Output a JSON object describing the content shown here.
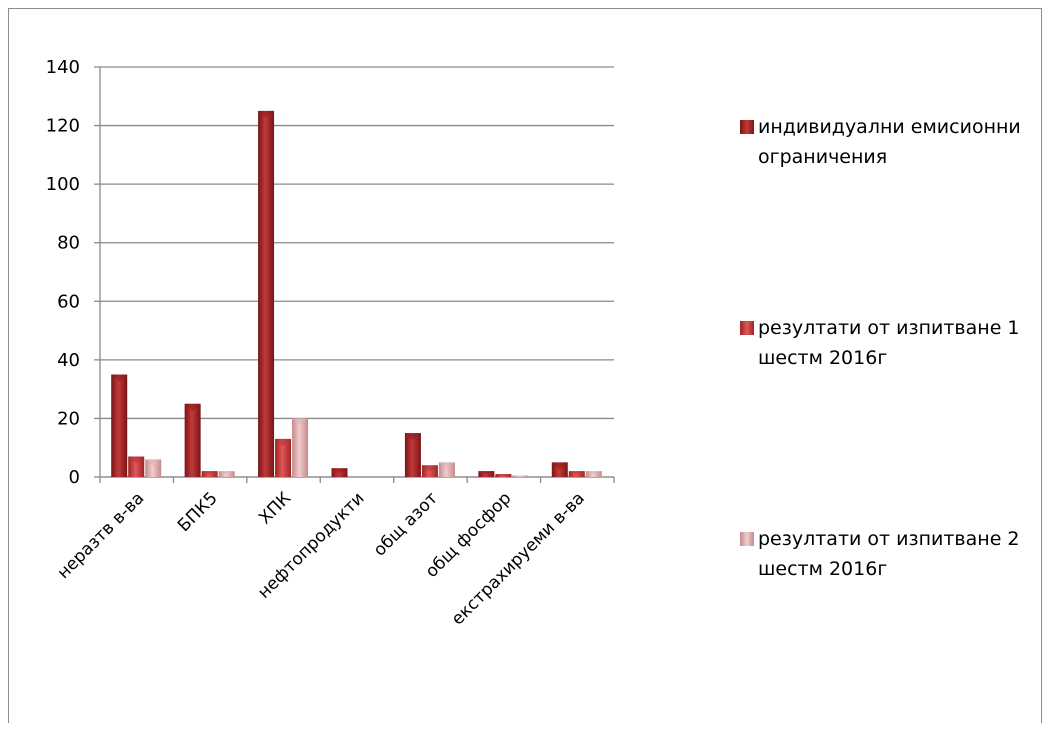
{
  "chart_data": {
    "type": "bar",
    "categories": [
      "неразтв в-ва",
      "БПК5",
      "ХПК",
      "нефтопродукти",
      "общ азот",
      "общ фосфор",
      "екстрахируеми в-ва"
    ],
    "series": [
      {
        "name": "индивидуални емисионни ограничения",
        "values": [
          35,
          25,
          125,
          3,
          15,
          2,
          5
        ],
        "color": "#a52a2a"
      },
      {
        "name": "резултати от изпитване 1 шестм 2016г",
        "values": [
          7,
          2,
          13,
          0,
          4,
          1,
          2
        ],
        "color": "#c0393b"
      },
      {
        "name": "резултати от изпитване 2 шестм 2016г",
        "values": [
          6,
          2,
          20,
          0,
          5,
          0.5,
          2
        ],
        "color": "#d9a3a5"
      }
    ],
    "ylim": [
      0,
      140
    ],
    "yticks": [
      0,
      20,
      40,
      60,
      80,
      100,
      120,
      140
    ],
    "grid": true,
    "legend_position": "right"
  }
}
